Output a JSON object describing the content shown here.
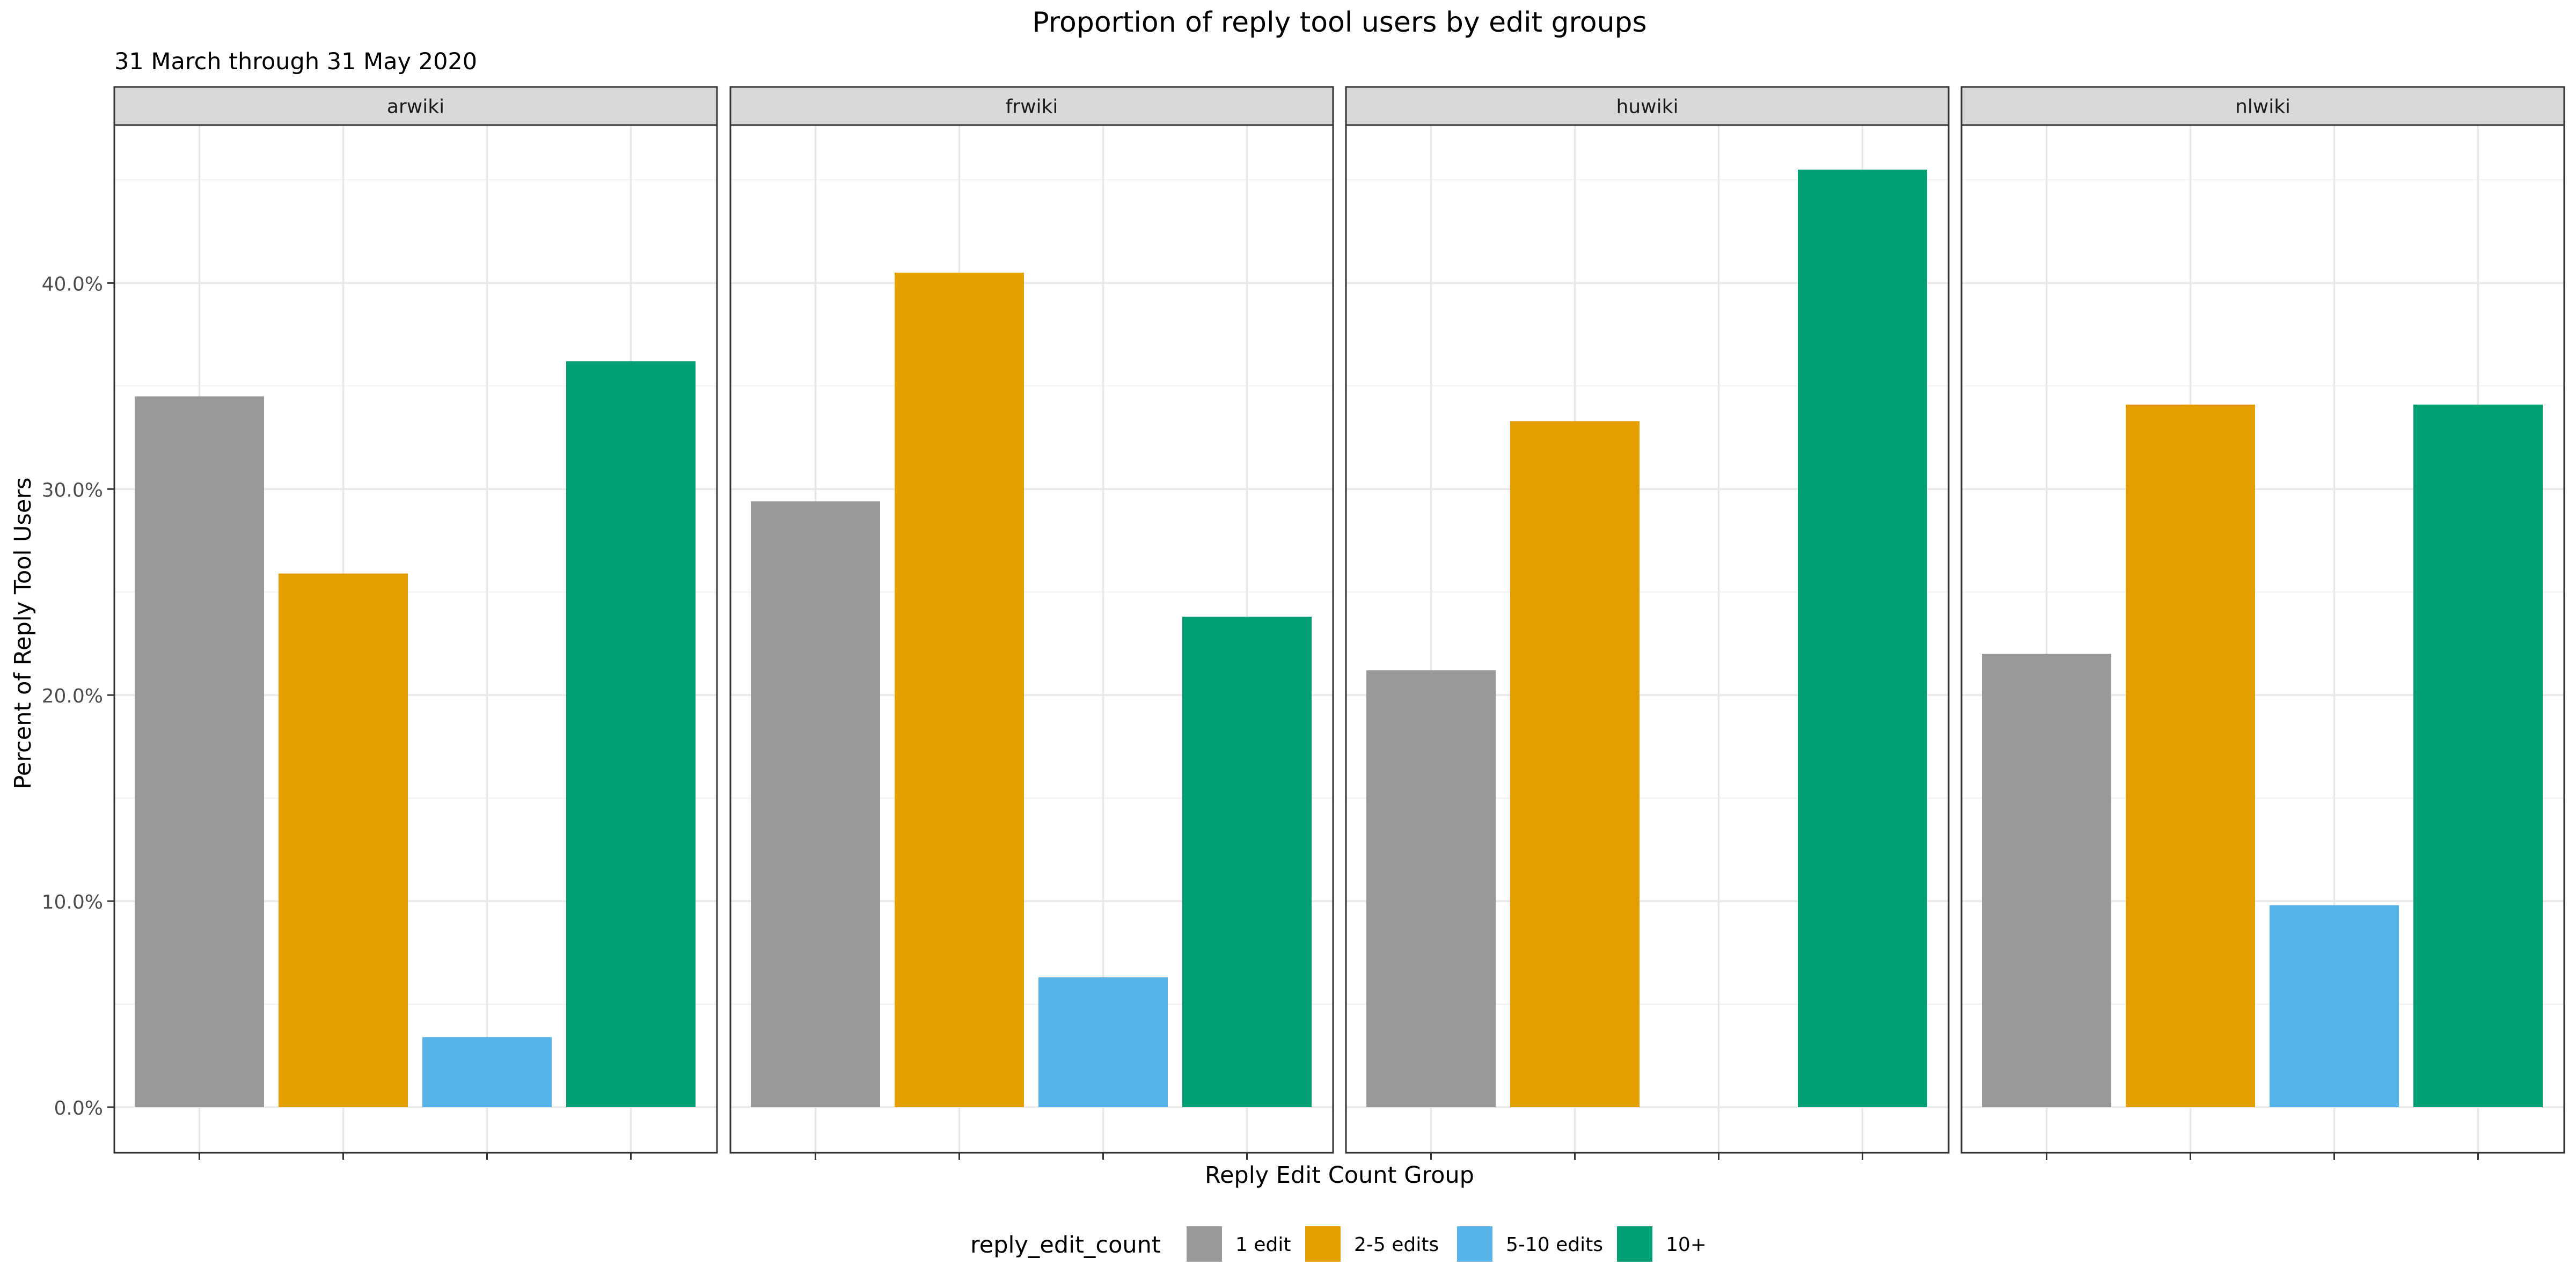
{
  "chart_data": {
    "type": "bar",
    "title": "Proportion of reply tool users by edit groups",
    "subtitle": "31 March through 31 May 2020",
    "xlabel": "Reply Edit Count Group",
    "ylabel": "Percent of Reply Tool Users",
    "ylim": [
      0,
      0.478
    ],
    "y_ticks": [
      0,
      0.1,
      0.2,
      0.3,
      0.4
    ],
    "y_tick_labels": [
      "0.0%",
      "10.0%",
      "20.0%",
      "30.0%",
      "40.0%"
    ],
    "grid": true,
    "categories": [
      "1 edit",
      "2-5 edits",
      "5-10 edits",
      "10+"
    ],
    "legend": {
      "title": "reply_edit_count",
      "position": "bottom",
      "entries": [
        "1 edit",
        "2-5 edits",
        "5-10 edits",
        "10+"
      ]
    },
    "colors": [
      "#999999",
      "#E69F00",
      "#56B4E9",
      "#009E73"
    ],
    "facets": [
      {
        "name": "arwiki",
        "values": [
          0.345,
          0.259,
          0.034,
          0.362
        ]
      },
      {
        "name": "frwiki",
        "values": [
          0.294,
          0.405,
          0.063,
          0.238
        ]
      },
      {
        "name": "huwiki",
        "values": [
          0.212,
          0.333,
          null,
          0.455
        ]
      },
      {
        "name": "nlwiki",
        "values": [
          0.22,
          0.341,
          0.098,
          0.341
        ]
      }
    ]
  }
}
